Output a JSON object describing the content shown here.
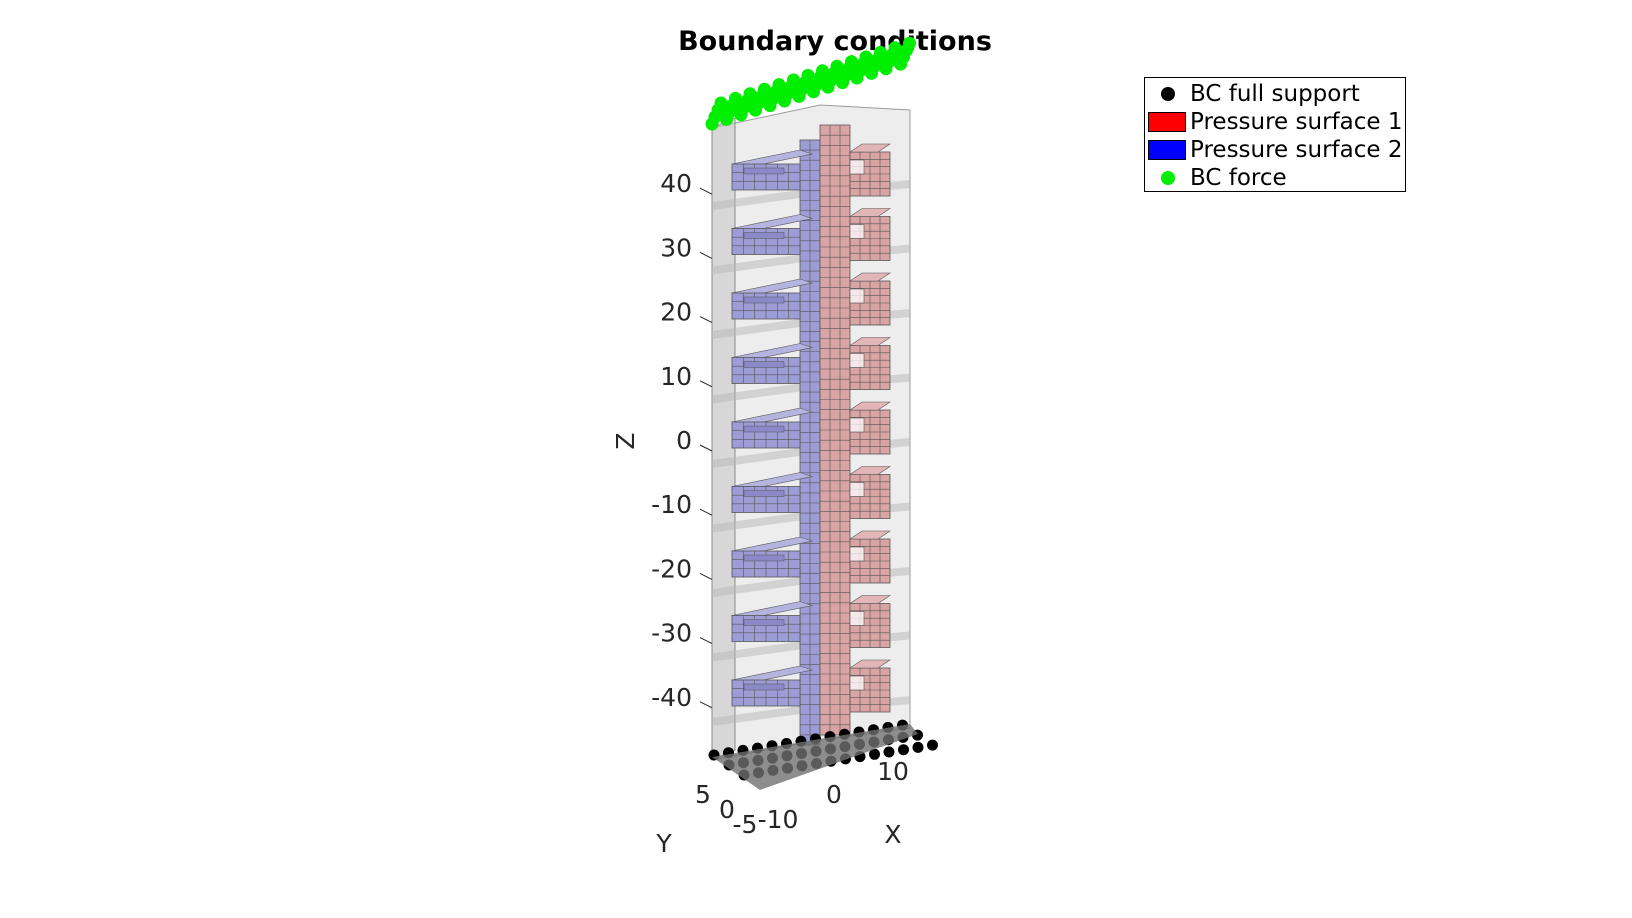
{
  "chart_data": {
    "type": "3d-mesh",
    "title": "Boundary conditions",
    "xlabel": "X",
    "ylabel": "Y",
    "zlabel": "Z",
    "x_ticks": [
      "-10",
      "0",
      "10"
    ],
    "y_ticks": [
      "5",
      "0",
      "-5"
    ],
    "z_ticks": [
      "40",
      "30",
      "20",
      "10",
      "0",
      "-10",
      "-20",
      "-30",
      "-40"
    ],
    "z_tick_values": [
      40,
      30,
      20,
      10,
      0,
      -10,
      -20,
      -30,
      -40
    ],
    "zlim": [
      -50,
      50
    ],
    "fingers_per_side": 9,
    "legend_placement": "top-right",
    "series": [
      {
        "name": "BC full support",
        "marker": "dot",
        "color": "#000000"
      },
      {
        "name": "Pressure surface 1",
        "marker": "patch",
        "color": "#ff0000"
      },
      {
        "name": "Pressure surface 2",
        "marker": "patch",
        "color": "#0000ff"
      },
      {
        "name": "BC force",
        "marker": "dot",
        "color": "#00ff00"
      }
    ],
    "render_colors": {
      "pressure_1_face": "#d9a4a4",
      "pressure_2_face": "#9d9dd5",
      "body_face": "#d6d6d6",
      "support_face": "#707070"
    }
  }
}
